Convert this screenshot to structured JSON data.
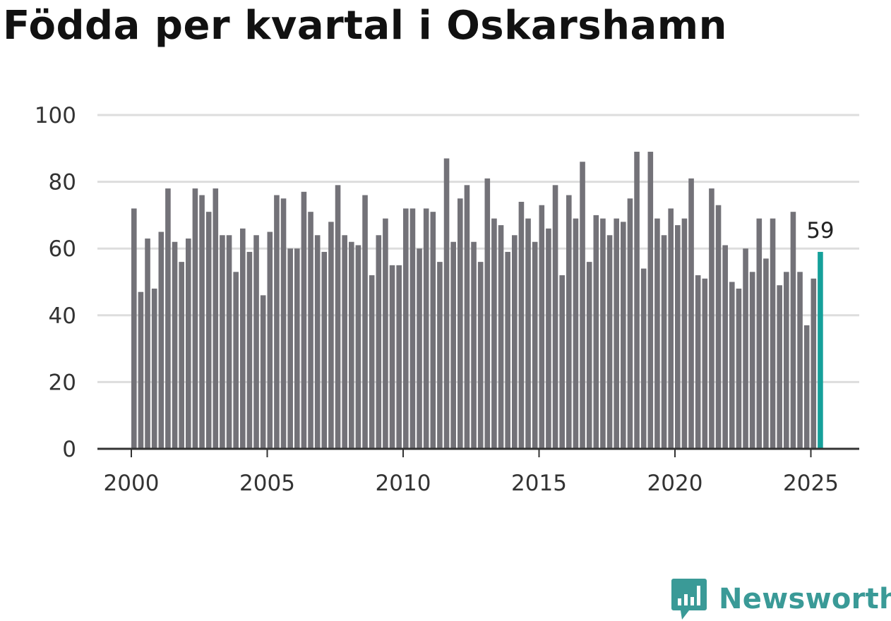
{
  "title": "Födda per kvartal i Oskarshamn",
  "brand": {
    "name": "Newsworthy",
    "icon": "newsworthy-logo-icon"
  },
  "colors": {
    "bar": "#737278",
    "highlight": "#15a09a",
    "grid": "#dddddd",
    "axis": "#333333",
    "brand": "#3a9a97"
  },
  "chart_data": {
    "type": "bar",
    "title": "Födda per kvartal i Oskarshamn",
    "xlabel": "",
    "ylabel": "",
    "ylim": [
      0,
      100
    ],
    "yticks": [
      0,
      20,
      40,
      60,
      80,
      100
    ],
    "xticks": [
      2000,
      2005,
      2010,
      2015,
      2020,
      2025
    ],
    "grid": true,
    "legend": "none",
    "x_start": "2000 Q1",
    "x_unit": "quarter",
    "values": [
      72,
      47,
      63,
      48,
      65,
      78,
      62,
      56,
      63,
      78,
      76,
      71,
      78,
      64,
      64,
      53,
      66,
      59,
      64,
      46,
      65,
      76,
      75,
      60,
      60,
      77,
      71,
      64,
      59,
      68,
      79,
      64,
      62,
      61,
      76,
      52,
      64,
      69,
      55,
      55,
      72,
      72,
      60,
      72,
      71,
      56,
      87,
      62,
      75,
      79,
      62,
      56,
      81,
      69,
      67,
      59,
      64,
      74,
      69,
      62,
      73,
      66,
      79,
      52,
      76,
      69,
      86,
      56,
      70,
      69,
      64,
      69,
      68,
      75,
      89,
      54,
      89,
      69,
      64,
      72,
      67,
      69,
      81,
      52,
      51,
      78,
      73,
      61,
      50,
      48,
      60,
      53,
      69,
      57,
      69,
      49,
      53,
      71,
      53,
      37,
      51,
      59
    ],
    "highlight_index": 101,
    "annotations": [
      {
        "label": "59",
        "index": 101
      }
    ]
  }
}
